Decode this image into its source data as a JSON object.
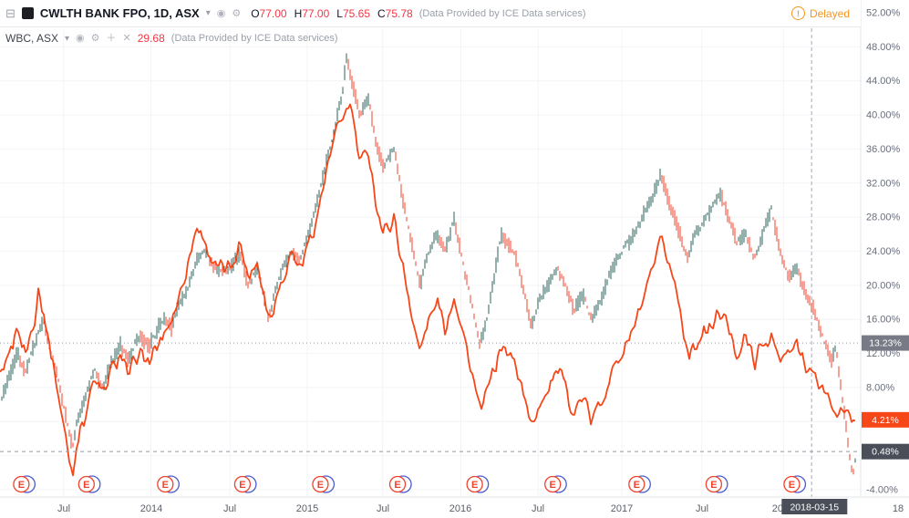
{
  "icons": {
    "collapse": "⊟",
    "chevron_down": "▾",
    "eye": "◉",
    "gear": "⚙",
    "plus": "＋",
    "close": "✕",
    "warning": "!"
  },
  "topbar": {
    "symbol_title": "CWLTH BANK FPO, 1D, ASX",
    "ohlc": [
      {
        "k": "O",
        "v": "77.00"
      },
      {
        "k": "H",
        "v": "77.00"
      },
      {
        "k": "L",
        "v": "75.65"
      },
      {
        "k": "C",
        "v": "75.78"
      }
    ],
    "data_note": "(Data Provided by ICE Data services)",
    "delayed_label": "Delayed"
  },
  "legend_compare": {
    "symbol_title": "WBC, ASX",
    "value": "29.68",
    "data_note": "(Data Provided by ICE Data services)"
  },
  "colors": {
    "candle_up": "#2a635b",
    "candle_down": "#ef432e",
    "compare_line": "#f74618",
    "ohlc_value": "#f23645",
    "delayed": "#f7941d",
    "axis_text": "#696e7b",
    "grid": "#f3f4f6",
    "axis_border": "#e2e4ea",
    "event_blue": "#4a5ccf",
    "event_red": "#ef432e",
    "dashed_line": "#9598a1"
  },
  "chart_data": {
    "type": "line",
    "title": "CWLTH BANK FPO vs WBC, percent change comparison, daily, ASX",
    "y_axis": {
      "unit": "%",
      "min": -4,
      "max": 52,
      "ticks": [
        52,
        48,
        44,
        40,
        36,
        32,
        28,
        24,
        20,
        16,
        12,
        8,
        4,
        0,
        -4
      ]
    },
    "x_axis": {
      "labels": [
        {
          "text": "Jul",
          "f": 0.07
        },
        {
          "text": "2014",
          "f": 0.166
        },
        {
          "text": "Jul",
          "f": 0.253
        },
        {
          "text": "2015",
          "f": 0.338
        },
        {
          "text": "Jul",
          "f": 0.421
        },
        {
          "text": "2016",
          "f": 0.507
        },
        {
          "text": "Jul",
          "f": 0.592
        },
        {
          "text": "2017",
          "f": 0.684
        },
        {
          "text": "Jul",
          "f": 0.772
        },
        {
          "text": "2018",
          "f": 0.862
        },
        {
          "text": "18",
          "f": 0.988
        }
      ]
    },
    "series": [
      {
        "name": "CWLTH BANK FPO",
        "style": "candles",
        "points": [
          [
            0,
            6
          ],
          [
            0.01,
            9
          ],
          [
            0.02,
            12
          ],
          [
            0.03,
            10
          ],
          [
            0.04,
            13
          ],
          [
            0.05,
            16
          ],
          [
            0.06,
            12
          ],
          [
            0.07,
            8
          ],
          [
            0.08,
            3
          ],
          [
            0.085,
            1
          ],
          [
            0.09,
            4
          ],
          [
            0.1,
            7
          ],
          [
            0.11,
            10
          ],
          [
            0.12,
            8
          ],
          [
            0.13,
            11
          ],
          [
            0.14,
            13
          ],
          [
            0.15,
            11
          ],
          [
            0.16,
            14
          ],
          [
            0.175,
            13
          ],
          [
            0.19,
            16
          ],
          [
            0.2,
            15
          ],
          [
            0.21,
            18
          ],
          [
            0.22,
            20
          ],
          [
            0.23,
            23
          ],
          [
            0.24,
            24
          ],
          [
            0.25,
            22
          ],
          [
            0.268,
            22
          ],
          [
            0.28,
            24
          ],
          [
            0.29,
            20
          ],
          [
            0.3,
            22
          ],
          [
            0.314,
            16
          ],
          [
            0.32,
            19
          ],
          [
            0.33,
            22
          ],
          [
            0.34,
            24
          ],
          [
            0.35,
            23
          ],
          [
            0.36,
            26
          ],
          [
            0.37,
            30
          ],
          [
            0.38,
            34
          ],
          [
            0.39,
            38
          ],
          [
            0.4,
            43
          ],
          [
            0.405,
            47
          ],
          [
            0.41,
            44
          ],
          [
            0.42,
            40
          ],
          [
            0.43,
            42
          ],
          [
            0.44,
            36
          ],
          [
            0.447,
            34
          ],
          [
            0.46,
            36
          ],
          [
            0.47,
            30
          ],
          [
            0.48,
            25
          ],
          [
            0.49,
            20
          ],
          [
            0.5,
            24
          ],
          [
            0.51,
            26
          ],
          [
            0.52,
            24
          ],
          [
            0.53,
            28
          ],
          [
            0.537,
            24
          ],
          [
            0.55,
            18
          ],
          [
            0.56,
            13
          ],
          [
            0.57,
            17
          ],
          [
            0.585,
            26
          ],
          [
            0.6,
            24
          ],
          [
            0.61,
            20
          ],
          [
            0.62,
            15
          ],
          [
            0.628,
            18
          ],
          [
            0.64,
            20
          ],
          [
            0.65,
            22
          ],
          [
            0.66,
            20
          ],
          [
            0.67,
            17
          ],
          [
            0.68,
            19
          ],
          [
            0.69,
            16
          ],
          [
            0.7,
            18
          ],
          [
            0.71,
            21
          ],
          [
            0.72,
            23
          ],
          [
            0.7255,
            24
          ],
          [
            0.74,
            26
          ],
          [
            0.75,
            28
          ],
          [
            0.76,
            30
          ],
          [
            0.771,
            33
          ],
          [
            0.78,
            30
          ],
          [
            0.79,
            27
          ],
          [
            0.803,
            23
          ],
          [
            0.81,
            26
          ],
          [
            0.819,
            27
          ],
          [
            0.83,
            29
          ],
          [
            0.84,
            31
          ],
          [
            0.85,
            28
          ],
          [
            0.86,
            25
          ],
          [
            0.87,
            26
          ],
          [
            0.88,
            23
          ],
          [
            0.89,
            26
          ],
          [
            0.9,
            29
          ],
          [
            0.91,
            24
          ],
          [
            0.92,
            21
          ],
          [
            0.93,
            22
          ],
          [
            0.94,
            19
          ],
          [
            0.95,
            17
          ],
          [
            0.96,
            14
          ],
          [
            0.97,
            11
          ],
          [
            0.975,
            13
          ],
          [
            0.98,
            9
          ],
          [
            0.985,
            5
          ],
          [
            0.99,
            1
          ],
          [
            0.995,
            -2.5
          ],
          [
            1,
            0.48
          ]
        ],
        "last_value": 0.48
      },
      {
        "name": "WBC",
        "style": "line",
        "points": [
          [
            0,
            9
          ],
          [
            0.01,
            12
          ],
          [
            0.02,
            15
          ],
          [
            0.03,
            12
          ],
          [
            0.04,
            16
          ],
          [
            0.045,
            20
          ],
          [
            0.05,
            17
          ],
          [
            0.06,
            12
          ],
          [
            0.07,
            6
          ],
          [
            0.08,
            0
          ],
          [
            0.085,
            -2
          ],
          [
            0.09,
            2
          ],
          [
            0.1,
            5
          ],
          [
            0.11,
            9
          ],
          [
            0.12,
            7
          ],
          [
            0.13,
            10
          ],
          [
            0.14,
            12
          ],
          [
            0.15,
            9
          ],
          [
            0.16,
            12
          ],
          [
            0.175,
            11
          ],
          [
            0.19,
            14
          ],
          [
            0.2,
            16
          ],
          [
            0.21,
            19
          ],
          [
            0.22,
            23
          ],
          [
            0.23,
            27
          ],
          [
            0.24,
            25
          ],
          [
            0.25,
            22
          ],
          [
            0.268,
            22
          ],
          [
            0.28,
            25
          ],
          [
            0.29,
            21
          ],
          [
            0.3,
            23
          ],
          [
            0.314,
            16
          ],
          [
            0.32,
            18
          ],
          [
            0.33,
            21
          ],
          [
            0.34,
            24
          ],
          [
            0.35,
            22
          ],
          [
            0.36,
            25
          ],
          [
            0.37,
            28
          ],
          [
            0.38,
            33
          ],
          [
            0.39,
            37
          ],
          [
            0.4,
            40
          ],
          [
            0.41,
            41
          ],
          [
            0.42,
            34
          ],
          [
            0.43,
            36
          ],
          [
            0.44,
            29
          ],
          [
            0.447,
            26
          ],
          [
            0.46,
            28
          ],
          [
            0.47,
            22
          ],
          [
            0.48,
            17
          ],
          [
            0.49,
            12
          ],
          [
            0.5,
            16
          ],
          [
            0.51,
            18
          ],
          [
            0.52,
            15
          ],
          [
            0.53,
            19
          ],
          [
            0.537,
            16
          ],
          [
            0.55,
            10
          ],
          [
            0.56,
            5
          ],
          [
            0.57,
            8
          ],
          [
            0.585,
            13
          ],
          [
            0.6,
            11
          ],
          [
            0.61,
            8
          ],
          [
            0.62,
            3
          ],
          [
            0.628,
            6
          ],
          [
            0.64,
            8
          ],
          [
            0.65,
            10
          ],
          [
            0.66,
            8
          ],
          [
            0.67,
            5
          ],
          [
            0.68,
            7
          ],
          [
            0.69,
            4
          ],
          [
            0.7,
            6
          ],
          [
            0.71,
            9
          ],
          [
            0.72,
            11
          ],
          [
            0.7255,
            12
          ],
          [
            0.74,
            15
          ],
          [
            0.75,
            18
          ],
          [
            0.76,
            21
          ],
          [
            0.771,
            25
          ],
          [
            0.78,
            23
          ],
          [
            0.79,
            19
          ],
          [
            0.803,
            12
          ],
          [
            0.81,
            13
          ],
          [
            0.819,
            14
          ],
          [
            0.83,
            15
          ],
          [
            0.84,
            17
          ],
          [
            0.85,
            15
          ],
          [
            0.86,
            12
          ],
          [
            0.87,
            14
          ],
          [
            0.88,
            11
          ],
          [
            0.89,
            13
          ],
          [
            0.9,
            14
          ],
          [
            0.91,
            11
          ],
          [
            0.92,
            12
          ],
          [
            0.93,
            13
          ],
          [
            0.94,
            11
          ],
          [
            0.95,
            9
          ],
          [
            0.96,
            8
          ],
          [
            0.97,
            6
          ],
          [
            0.98,
            5
          ],
          [
            0.99,
            4.5
          ],
          [
            1,
            4.21
          ]
        ],
        "last_value": 4.21
      }
    ],
    "price_lines": [
      {
        "value": 13.23,
        "label": "13.23%",
        "badge": "#787b86",
        "line": "dotted"
      },
      {
        "value": 4.21,
        "label": "4.21%",
        "badge": "#f74618",
        "line": "none"
      },
      {
        "value": 0.48,
        "label": "0.48%",
        "badge": "#4a4e59",
        "line": "dashed"
      }
    ],
    "crosshair": {
      "date_label": "2018-03-15",
      "t_plot": 0.947,
      "f_axis": 0.896
    },
    "events": {
      "label": "E",
      "positions_t": [
        0.027,
        0.103,
        0.195,
        0.285,
        0.376,
        0.466,
        0.556,
        0.647,
        0.745,
        0.835,
        0.926
      ]
    }
  }
}
